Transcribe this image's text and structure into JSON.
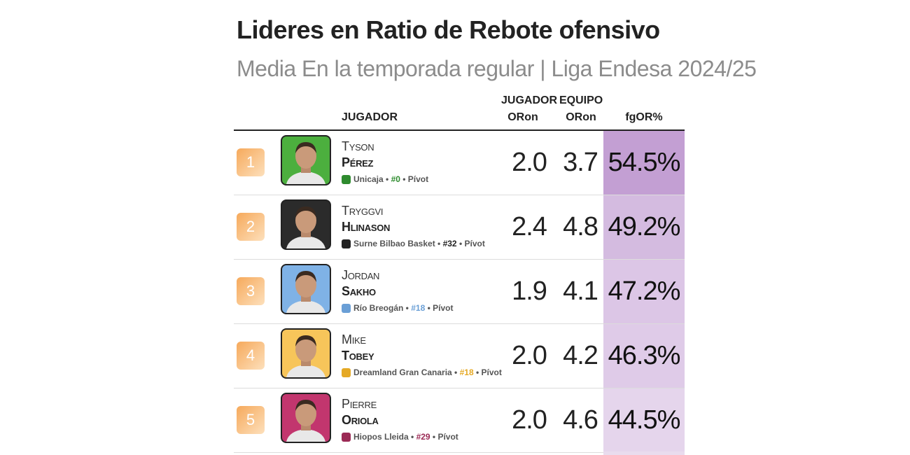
{
  "title": "Lideres en Ratio de Rebote ofensivo",
  "subtitle": "Media En la temporada regular | Liga Endesa 2024/25",
  "headers": {
    "player": "JUGADOR",
    "player_top": "JUGADOR",
    "player_bottom": "ORon",
    "team_top": "EQUIPO",
    "team_bottom": "ORon",
    "pct": "fgOR%"
  },
  "players": [
    {
      "rank": "1",
      "first": "Tyson",
      "last": "Pérez",
      "team": "Unicaja",
      "number": "#0",
      "position": "Pívot",
      "player_oron": "2.0",
      "team_oron": "3.7",
      "pct": "54.5%",
      "pct_value": 54.5,
      "photo_bg": "#4caf3e",
      "num_color": "#2e8b2e",
      "pct_color": "#c39fd3",
      "logo": "unicaja-logo-icon"
    },
    {
      "rank": "2",
      "first": "Tryggvi",
      "last": "Hlinason",
      "team": "Surne Bilbao Basket",
      "number": "#32",
      "position": "Pívot",
      "player_oron": "2.4",
      "team_oron": "4.8",
      "pct": "49.2%",
      "pct_value": 49.2,
      "photo_bg": "#2b2b2b",
      "num_color": "#222222",
      "pct_color": "#d4bbe0",
      "logo": "bilbao-logo-icon"
    },
    {
      "rank": "3",
      "first": "Jordan",
      "last": "Sakho",
      "team": "Río Breogán",
      "number": "#18",
      "position": "Pívot",
      "player_oron": "1.9",
      "team_oron": "4.1",
      "pct": "47.2%",
      "pct_value": 47.2,
      "photo_bg": "#7fb2e6",
      "num_color": "#6a9fd6",
      "pct_color": "#dcc6e6",
      "logo": "breogan-logo-icon"
    },
    {
      "rank": "4",
      "first": "Mike",
      "last": "Tobey",
      "team": "Dreamland Gran Canaria",
      "number": "#18",
      "position": "Pívot",
      "player_oron": "2.0",
      "team_oron": "4.2",
      "pct": "46.3%",
      "pct_value": 46.3,
      "photo_bg": "#f7c55a",
      "num_color": "#e5a925",
      "pct_color": "#dfcbe8",
      "logo": "grancanaria-logo-icon"
    },
    {
      "rank": "5",
      "first": "Pierre",
      "last": "Oriola",
      "team": "Hiopos Lleida",
      "number": "#29",
      "position": "Pívot",
      "player_oron": "2.0",
      "team_oron": "4.6",
      "pct": "44.5%",
      "pct_value": 44.5,
      "photo_bg": "#c2366e",
      "num_color": "#9b2a55",
      "pct_color": "#e5d5ec",
      "logo": "lleida-logo-icon"
    }
  ]
}
